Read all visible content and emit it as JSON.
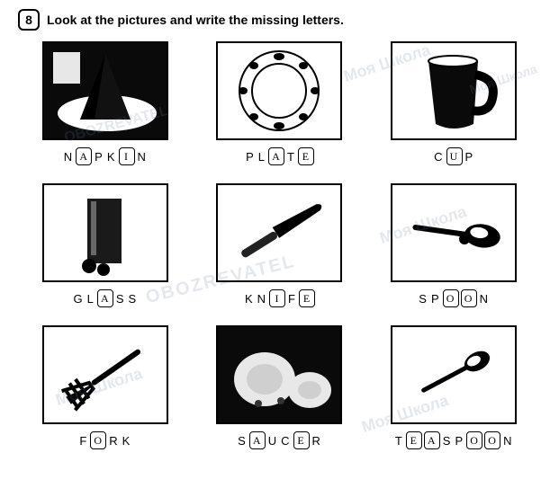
{
  "exercise_number": "8",
  "instruction": "Look at the pictures and write the missing letters.",
  "items": [
    {
      "image": "napkin",
      "segments": [
        {
          "t": "fixed",
          "v": "N"
        },
        {
          "t": "box",
          "v": "A"
        },
        {
          "t": "fixed",
          "v": "P"
        },
        {
          "t": "fixed",
          "v": "K"
        },
        {
          "t": "box",
          "v": "I"
        },
        {
          "t": "fixed",
          "v": "N"
        }
      ]
    },
    {
      "image": "plate",
      "segments": [
        {
          "t": "fixed",
          "v": "P"
        },
        {
          "t": "fixed",
          "v": "L"
        },
        {
          "t": "box",
          "v": "A"
        },
        {
          "t": "fixed",
          "v": "T"
        },
        {
          "t": "box",
          "v": "E"
        }
      ]
    },
    {
      "image": "cup",
      "segments": [
        {
          "t": "fixed",
          "v": "C"
        },
        {
          "t": "box",
          "v": "U"
        },
        {
          "t": "fixed",
          "v": "P"
        }
      ]
    },
    {
      "image": "glass",
      "segments": [
        {
          "t": "fixed",
          "v": "G"
        },
        {
          "t": "fixed",
          "v": "L"
        },
        {
          "t": "box",
          "v": "A"
        },
        {
          "t": "fixed",
          "v": "S"
        },
        {
          "t": "fixed",
          "v": "S"
        }
      ]
    },
    {
      "image": "knife",
      "segments": [
        {
          "t": "fixed",
          "v": "K"
        },
        {
          "t": "fixed",
          "v": "N"
        },
        {
          "t": "box",
          "v": "I"
        },
        {
          "t": "fixed",
          "v": "F"
        },
        {
          "t": "box",
          "v": "E"
        }
      ]
    },
    {
      "image": "spoon",
      "segments": [
        {
          "t": "fixed",
          "v": "S"
        },
        {
          "t": "fixed",
          "v": "P"
        },
        {
          "t": "box",
          "v": "O"
        },
        {
          "t": "box",
          "v": "O"
        },
        {
          "t": "fixed",
          "v": "N"
        }
      ]
    },
    {
      "image": "fork",
      "segments": [
        {
          "t": "fixed",
          "v": "F"
        },
        {
          "t": "box",
          "v": "O"
        },
        {
          "t": "fixed",
          "v": "R"
        },
        {
          "t": "fixed",
          "v": "K"
        }
      ]
    },
    {
      "image": "saucer",
      "segments": [
        {
          "t": "fixed",
          "v": "S"
        },
        {
          "t": "box",
          "v": "A"
        },
        {
          "t": "fixed",
          "v": "U"
        },
        {
          "t": "fixed",
          "v": "C"
        },
        {
          "t": "box",
          "v": "E"
        },
        {
          "t": "fixed",
          "v": "R"
        }
      ]
    },
    {
      "image": "teaspoon",
      "segments": [
        {
          "t": "fixed",
          "v": "T"
        },
        {
          "t": "box",
          "v": "E"
        },
        {
          "t": "box",
          "v": "A"
        },
        {
          "t": "fixed",
          "v": "S"
        },
        {
          "t": "fixed",
          "v": "P"
        },
        {
          "t": "box",
          "v": "O"
        },
        {
          "t": "box",
          "v": "O"
        },
        {
          "t": "fixed",
          "v": "N"
        }
      ]
    }
  ],
  "watermarks": [
    "Моя Школа",
    "OBOZREVATEL",
    "Моя Школа",
    "OBOZREVATEL",
    "Моя Школа",
    "Моя Школа",
    "Моя Школа"
  ],
  "colors": {
    "border": "#000000",
    "bg": "#ffffff",
    "wm": "rgba(100,120,160,0.18)"
  }
}
